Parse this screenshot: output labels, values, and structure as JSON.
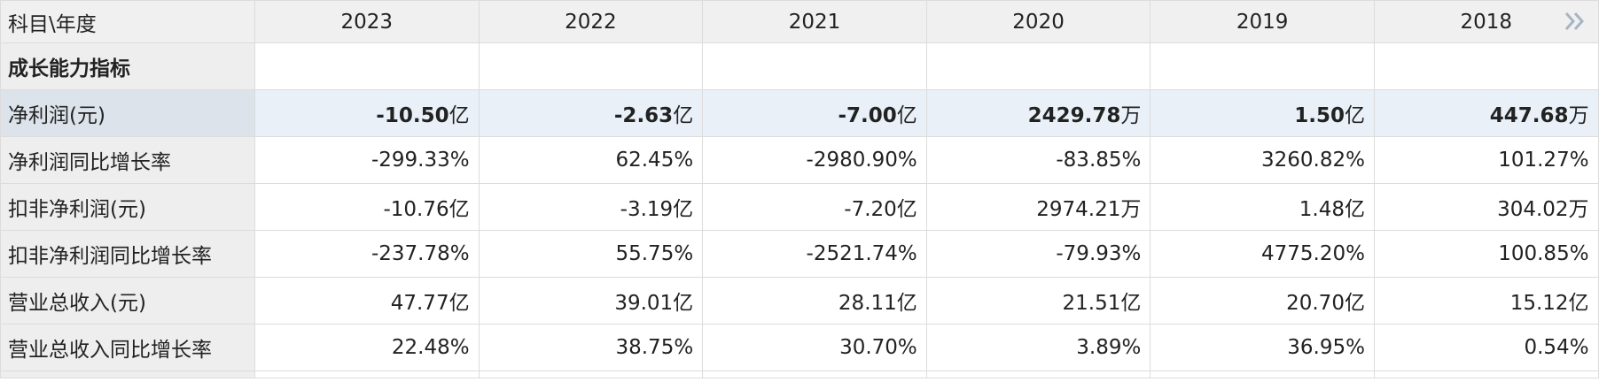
{
  "header": {
    "corner": "科目\\年度",
    "years": [
      "2023",
      "2022",
      "2021",
      "2020",
      "2019",
      "2018"
    ]
  },
  "section": "成长能力指标",
  "highlight_row": {
    "label": "净利润(元)",
    "cells": [
      [
        "-10.50",
        "亿"
      ],
      [
        "-2.63",
        "亿"
      ],
      [
        "-7.00",
        "亿"
      ],
      [
        "2429.78",
        "万"
      ],
      [
        "1.50",
        "亿"
      ],
      [
        "447.68",
        "万"
      ]
    ]
  },
  "rows": [
    {
      "label": "净利润同比增长率",
      "cells": [
        "-299.33%",
        "62.45%",
        "-2980.90%",
        "-83.85%",
        "3260.82%",
        "101.27%"
      ]
    },
    {
      "label": "扣非净利润(元)",
      "cells": [
        "-10.76亿",
        "-3.19亿",
        "-7.20亿",
        "2974.21万",
        "1.48亿",
        "304.02万"
      ]
    },
    {
      "label": "扣非净利润同比增长率",
      "cells": [
        "-237.78%",
        "55.75%",
        "-2521.74%",
        "-79.93%",
        "4775.20%",
        "100.85%"
      ]
    },
    {
      "label": "营业总收入(元)",
      "cells": [
        "47.77亿",
        "39.01亿",
        "28.11亿",
        "21.51亿",
        "20.70亿",
        "15.12亿"
      ]
    },
    {
      "label": "营业总收入同比增长率",
      "cells": [
        "22.48%",
        "38.75%",
        "30.70%",
        "3.89%",
        "36.95%",
        "0.54%"
      ]
    }
  ]
}
